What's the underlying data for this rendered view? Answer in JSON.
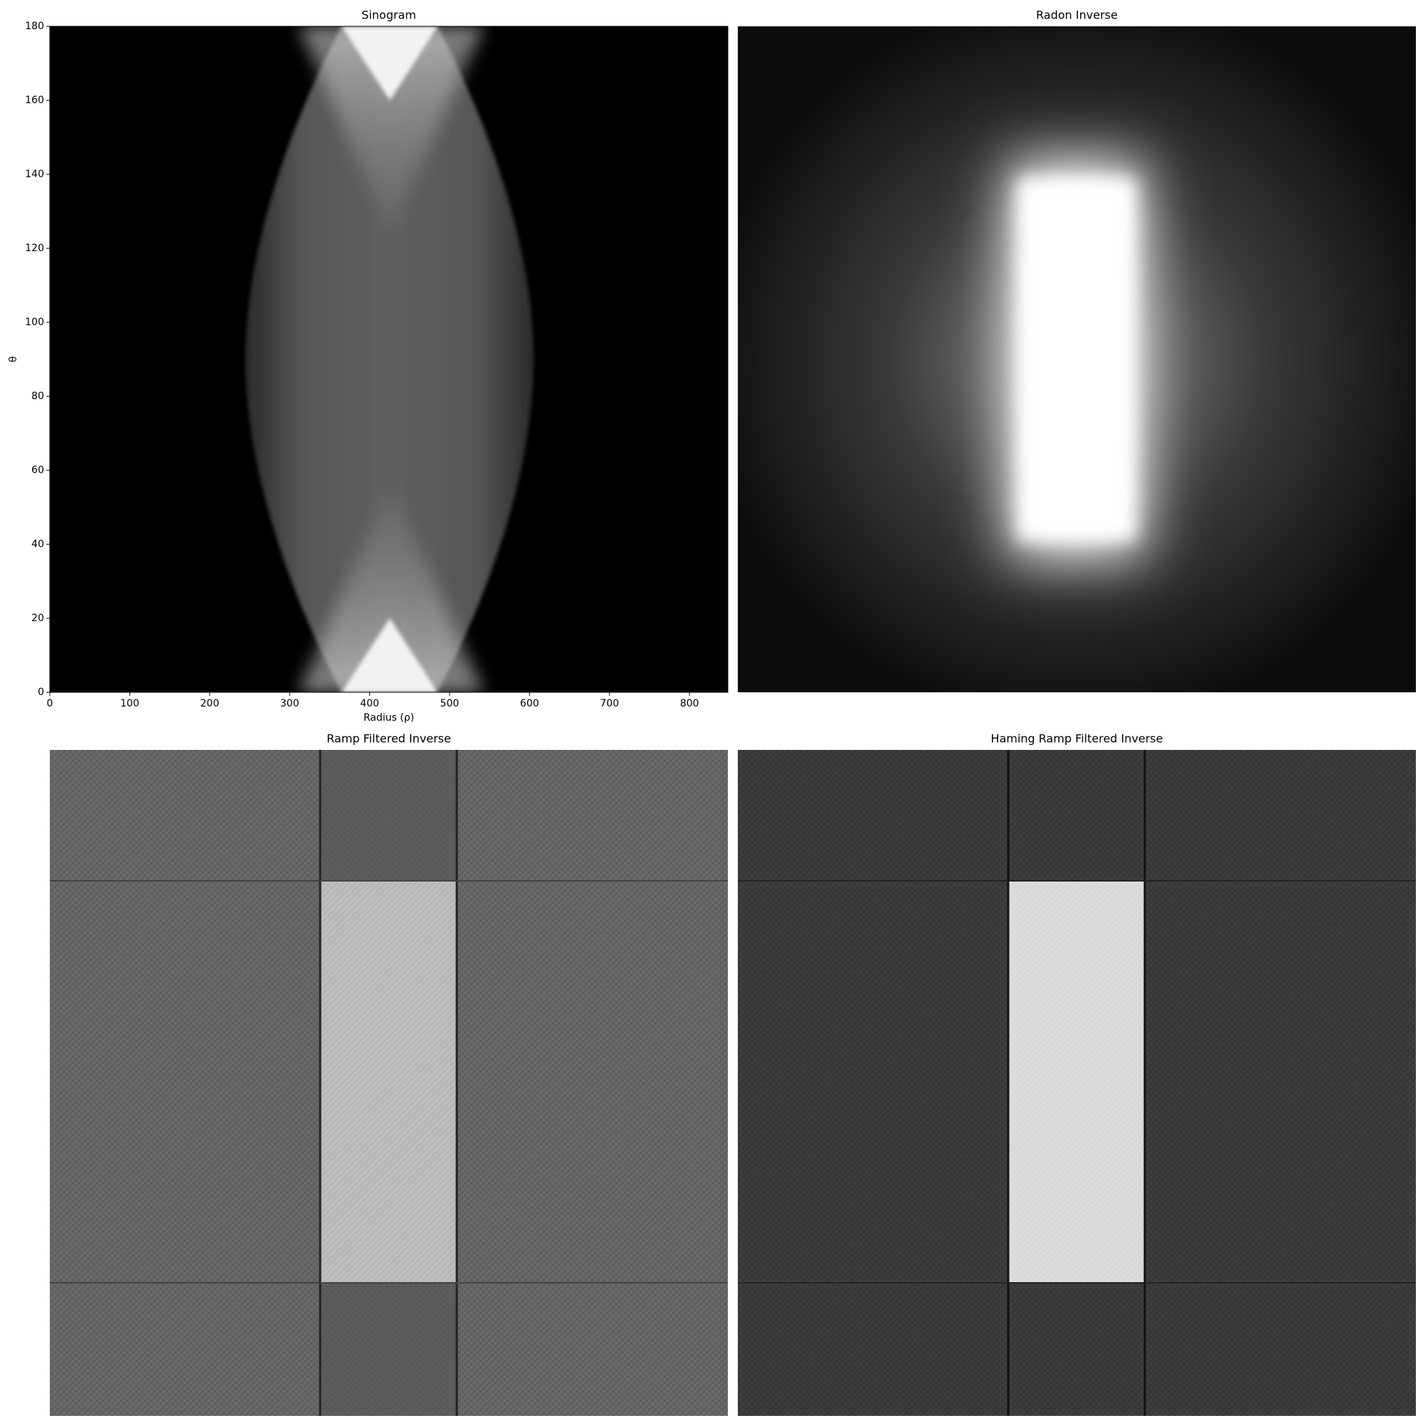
{
  "chart_data": [
    {
      "type": "image",
      "title": "Sinogram",
      "xlabel": "Radius (ρ)",
      "ylabel": "θ",
      "xlim": [
        0,
        848
      ],
      "ylim": [
        0,
        180
      ],
      "xticks": [
        0,
        100,
        200,
        300,
        400,
        500,
        600,
        700,
        800
      ],
      "yticks": [
        0,
        20,
        40,
        60,
        80,
        100,
        120,
        140,
        160,
        180
      ]
    },
    {
      "type": "image",
      "title": "Radon Inverse"
    },
    {
      "type": "image",
      "title": "Ramp Filtered Inverse"
    },
    {
      "type": "image",
      "title": "Haming Ramp Filtered Inverse"
    }
  ]
}
